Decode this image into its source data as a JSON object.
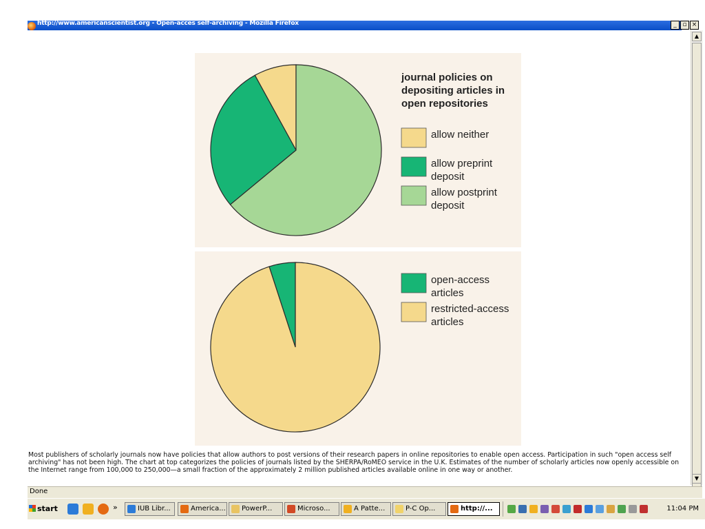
{
  "window": {
    "title": "http://www.americanscientist.org - Open-acces self-archiving - Mozilla Firefox",
    "buttons": [
      "_",
      "▫",
      "×"
    ]
  },
  "chart_data": [
    {
      "type": "pie",
      "title": "journal policies on depositing articles in open repositories",
      "title_lines": [
        "journal policies on",
        "depositing articles in",
        "open repositories"
      ],
      "categories": [
        "allow neither",
        "allow preprint deposit",
        "allow postprint deposit"
      ],
      "category_lines": [
        [
          "allow neither"
        ],
        [
          "allow preprint",
          "deposit"
        ],
        [
          "allow postprint",
          "deposit"
        ]
      ],
      "values": [
        8,
        28,
        64
      ],
      "colors": [
        "#f5d98c",
        "#17b575",
        "#a6d796"
      ],
      "legend": "right"
    },
    {
      "type": "pie",
      "title": "",
      "categories": [
        "open-access articles",
        "restricted-access articles"
      ],
      "category_lines": [
        [
          "open-access",
          "articles"
        ],
        [
          "restricted-access",
          "articles"
        ]
      ],
      "values": [
        5,
        95
      ],
      "colors": [
        "#17b575",
        "#f5d98c"
      ],
      "legend": "right"
    }
  ],
  "caption": "Most publishers of scholarly journals now have policies that allow authors to post versions of their research papers in online repositories to enable open access. Participation in such \"open access self archiving\" has not been high. The chart at top categorizes the policies of journals listed by the SHERPA/RoMEO service in the U.K. Estimates of the number of scholarly articles now openly accessible on the Internet range from 100,000 to 250,000—a small fraction of the approximately 2 million published articles available online in one way or another.",
  "status": "Done",
  "taskbar": {
    "start": "start",
    "chevron": "»",
    "tasks": [
      {
        "label": "IUB Libr...",
        "icon": "ie-icon",
        "color": "#2c7bd8"
      },
      {
        "label": "America...",
        "icon": "firefox-icon",
        "color": "#e46a12"
      },
      {
        "label": "PowerP...",
        "icon": "folder-icon",
        "color": "#e9c462"
      },
      {
        "label": "Microso...",
        "icon": "powerpoint-icon",
        "color": "#d24a26"
      },
      {
        "label": "A Patte...",
        "icon": "clock-icon",
        "color": "#f0b020"
      },
      {
        "label": "P-C Op...",
        "icon": "mail-icon",
        "color": "#f1d36a"
      },
      {
        "label": "http://...",
        "icon": "firefox-icon",
        "color": "#e46a12",
        "active": true
      }
    ],
    "clock": "11:04 PM"
  }
}
